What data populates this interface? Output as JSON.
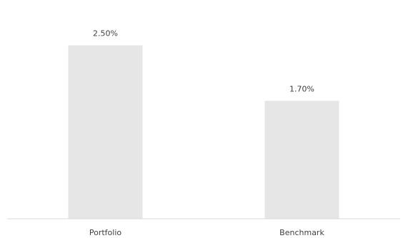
{
  "chart_data": {
    "type": "bar",
    "title": "",
    "xlabel": "",
    "ylabel": "",
    "categories": [
      "Portfolio",
      "Benchmark"
    ],
    "values": [
      2.5,
      1.7
    ],
    "data_labels": [
      "2.50%",
      "1.70%"
    ],
    "ylim": [
      0,
      3.05
    ],
    "grid": false,
    "legend": "none",
    "colors": {
      "bar": "#e6e6e6",
      "axis": "#d9d9d9",
      "text": "#404040"
    }
  }
}
